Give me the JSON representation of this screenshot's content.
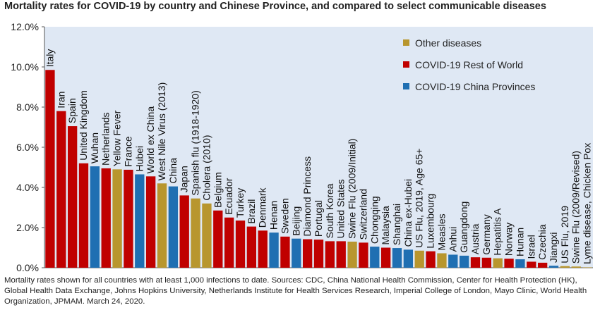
{
  "title": "Mortality rates for COVID-19 by country and Chinese Province, and compared to select communicable diseases",
  "footnote": "Mortality rates shown for all countries with at least 1,000 infections to date.  Sources: CDC, China National Health Commission, Center for Health Protection (HK), Global Health Data Exchange, Johns Hopkins University, Netherlands Institute for Health Services Research,  Imperial College of London, Mayo Clinic, World Health Organization, JPMAM. March 24, 2020.",
  "colors": {
    "Other diseases": "#b8962e",
    "COVID-19 Rest of World": "#c00000",
    "COVID-19 China Provinces": "#1f6fb2",
    "plot_bg": "#dfe8f4"
  },
  "chart_data": {
    "type": "bar",
    "title": "Mortality rates for COVID-19 by country and Chinese Province, and compared to select communicable diseases",
    "ylim": [
      0,
      12
    ],
    "yticks": [
      "0.0%",
      "2.0%",
      "4.0%",
      "6.0%",
      "8.0%",
      "10.0%",
      "12.0%"
    ],
    "grid": false,
    "legend_position": "top-right",
    "legend": [
      "Other diseases",
      "COVID-19 Rest of World",
      "COVID-19 China Provinces"
    ],
    "categories": [
      "Italy",
      "Iran",
      "Spain",
      "United Kingdom",
      "Wuhan",
      "Netherlands",
      "Yellow Fever",
      "France",
      "Hubei",
      "World ex China",
      "West Nile Virus (2013)",
      "China",
      "Japan",
      "Spanish flu (1918-1920)",
      "Cholera (2010)",
      "Belgium",
      "Ecuador",
      "Turkey",
      "Brazil",
      "Denmark",
      "Henan",
      "Sweden",
      "Beijing",
      "Diamond Princess",
      "Portugal",
      "South Korea",
      "United States",
      "Swine Flu (2009/Initial)",
      "Switzerland",
      "Chongqing",
      "Malaysia",
      "Shanghai",
      "China ex-Hubei",
      "US Flu, 2019, Age 65+",
      "Luxembourg",
      "Measles",
      "Anhui",
      "Guangdong",
      "Austria",
      "Germany",
      "Hepatitis A",
      "Norway",
      "Hunan",
      "Israel",
      "Czechia",
      "Jiangxi",
      "US Flu, 2019",
      "Swine Flu (2009/Revised)",
      "Lyme disease, Chicken Pox"
    ],
    "values": [
      9.85,
      7.8,
      7.05,
      5.2,
      5.05,
      4.95,
      4.9,
      4.88,
      4.65,
      4.55,
      4.2,
      4.05,
      3.6,
      3.45,
      3.2,
      2.85,
      2.5,
      2.35,
      2.05,
      1.85,
      1.75,
      1.55,
      1.45,
      1.42,
      1.4,
      1.32,
      1.32,
      1.3,
      1.25,
      1.05,
      1.0,
      0.98,
      0.9,
      0.85,
      0.82,
      0.72,
      0.65,
      0.6,
      0.52,
      0.5,
      0.47,
      0.45,
      0.42,
      0.3,
      0.25,
      0.1,
      0.08,
      0.06,
      0.02
    ],
    "groups": [
      "COVID-19 Rest of World",
      "COVID-19 Rest of World",
      "COVID-19 Rest of World",
      "COVID-19 Rest of World",
      "COVID-19 China Provinces",
      "COVID-19 Rest of World",
      "Other diseases",
      "COVID-19 Rest of World",
      "COVID-19 China Provinces",
      "COVID-19 Rest of World",
      "Other diseases",
      "COVID-19 China Provinces",
      "COVID-19 Rest of World",
      "Other diseases",
      "Other diseases",
      "COVID-19 Rest of World",
      "COVID-19 Rest of World",
      "COVID-19 Rest of World",
      "COVID-19 Rest of World",
      "COVID-19 Rest of World",
      "COVID-19 China Provinces",
      "COVID-19 Rest of World",
      "COVID-19 China Provinces",
      "COVID-19 Rest of World",
      "COVID-19 Rest of World",
      "COVID-19 Rest of World",
      "COVID-19 Rest of World",
      "Other diseases",
      "COVID-19 Rest of World",
      "COVID-19 China Provinces",
      "COVID-19 Rest of World",
      "COVID-19 China Provinces",
      "COVID-19 China Provinces",
      "Other diseases",
      "COVID-19 Rest of World",
      "Other diseases",
      "COVID-19 China Provinces",
      "COVID-19 China Provinces",
      "COVID-19 Rest of World",
      "COVID-19 Rest of World",
      "Other diseases",
      "COVID-19 Rest of World",
      "COVID-19 China Provinces",
      "COVID-19 Rest of World",
      "COVID-19 Rest of World",
      "COVID-19 China Provinces",
      "Other diseases",
      "Other diseases",
      "Other diseases"
    ]
  }
}
